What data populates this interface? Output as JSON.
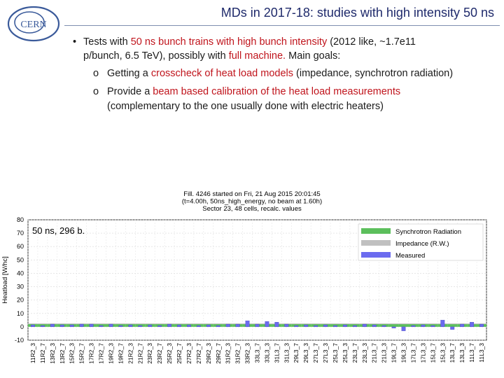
{
  "slide": {
    "logo_text": "CERN",
    "title": "MDs in 2017-18: studies with high intensity 50 ns",
    "bullet": {
      "marker": "•",
      "t1": "Tests with ",
      "r1": "50 ns bunch trains with high bunch intensity",
      "t2": " (2012 like, ~1.7e11",
      "t3": "p/bunch, 6.5 TeV), possibly with ",
      "r2": "full machine.",
      "t4": " Main goals:"
    },
    "sub1": {
      "marker": "o",
      "t1": "Getting a ",
      "r1": "crosscheck of heat load models",
      "t2": " (impedance, synchrotron radiation)"
    },
    "sub2": {
      "marker": "o",
      "t1": "Provide a ",
      "r1": "beam based calibration of the heat load measurements",
      "t2": "(complementary to the one usually done with electric heaters)"
    }
  },
  "chart_data": {
    "type": "bar",
    "title_lines": [
      "Fill. 4246 started on Fri, 21 Aug 2015 20:01:45",
      "(t=4.00h, 50ns_high_energy, no beam at 1.60h)",
      "Sector 23, 48 cells, recalc. values"
    ],
    "annotation": "50 ns, 296 b.",
    "ylabel": "Heatload [W/hc]",
    "xlabel": "",
    "ylim": [
      -10,
      80
    ],
    "yticks": [
      -10,
      0,
      10,
      20,
      30,
      40,
      50,
      60,
      70,
      80
    ],
    "categories": [
      "11R2_3",
      "11R2_7",
      "13R2_3",
      "13R2_7",
      "15R2_3",
      "15R2_7",
      "17R2_3",
      "17R2_7",
      "19R2_3",
      "19R2_7",
      "21R2_3",
      "21R2_7",
      "23R2_3",
      "23R2_7",
      "25R2_3",
      "25R2_7",
      "27R2_3",
      "27R2_7",
      "29R2_3",
      "29R2_7",
      "31R2_3",
      "31R2_7",
      "33R2_3",
      "33L3_7",
      "33L3_3",
      "31L3_7",
      "31L3_3",
      "29L3_7",
      "29L3_3",
      "27L3_7",
      "27L3_3",
      "25L3_7",
      "25L3_3",
      "23L3_7",
      "23L3_3",
      "21L3_7",
      "21L3_3",
      "19L3_7",
      "19L3_3",
      "17L3_7",
      "17L3_3",
      "15L3_7",
      "15L3_3",
      "13L3_7",
      "13L3_3",
      "11L3_7",
      "11L3_3"
    ],
    "series": [
      {
        "name": "Synchrotron Radiation",
        "color": "#5cbf5c",
        "values": [
          2,
          2,
          2,
          2,
          2,
          2,
          2,
          2,
          2,
          2,
          2,
          2,
          2,
          2,
          2,
          2,
          2,
          2,
          2,
          2,
          2,
          2,
          2,
          2,
          2,
          2,
          2,
          2,
          2,
          2,
          2,
          2,
          2,
          2,
          2,
          2,
          2,
          2,
          2,
          2,
          2,
          2,
          2,
          2,
          2,
          2,
          2
        ]
      },
      {
        "name": "Impedance (R.W.)",
        "color": "#c0c0c0",
        "values": [
          0.5,
          0.5,
          0.5,
          0.5,
          0.5,
          0.5,
          0.5,
          0.5,
          0.5,
          0.5,
          0.5,
          0.5,
          0.5,
          0.5,
          0.5,
          0.5,
          0.5,
          0.5,
          0.5,
          0.5,
          0.5,
          0.5,
          0.5,
          0.5,
          0.5,
          0.5,
          0.5,
          0.5,
          0.5,
          0.5,
          0.5,
          0.5,
          0.5,
          0.5,
          0.5,
          0.5,
          0.5,
          0.5,
          0.5,
          0.5,
          0.5,
          0.5,
          0.5,
          0.5,
          0.5,
          0.5,
          0.5
        ]
      },
      {
        "name": "Measured",
        "color": "#6b6bef",
        "values": [
          1.5,
          1,
          2,
          1.5,
          1.5,
          2,
          2,
          1,
          2,
          1,
          1.5,
          1,
          1.5,
          1,
          2,
          1.5,
          1.5,
          1,
          1.5,
          1,
          2,
          2,
          4.5,
          2,
          4,
          3.5,
          2,
          1,
          1.5,
          1,
          1.5,
          1,
          1.5,
          1,
          2,
          1.5,
          1,
          -1,
          -3,
          1,
          1.5,
          1,
          5,
          -2,
          2,
          3.5,
          2
        ]
      }
    ]
  }
}
